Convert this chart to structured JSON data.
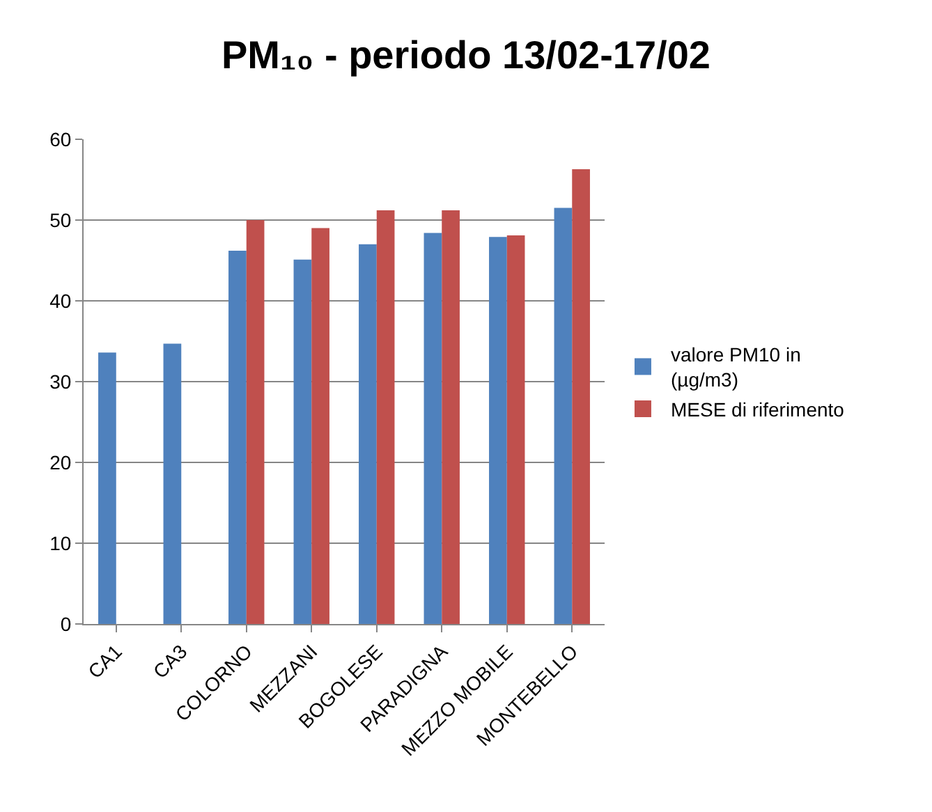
{
  "chart_data": {
    "type": "bar",
    "title": "PM₁₀ - periodo 13/02-17/02",
    "categories": [
      "CA1",
      "CA3",
      "COLORNO",
      "MEZZANI",
      "BOGOLESE",
      "PARADIGNA",
      "MEZZO MOBILE",
      "MONTEBELLO"
    ],
    "series": [
      {
        "name": "valore PM10 in (µg/m3)",
        "color": "#4f81bd",
        "values": [
          33.6,
          34.7,
          46.2,
          45.1,
          47.0,
          48.4,
          47.9,
          51.5
        ]
      },
      {
        "name": "MESE di riferimento",
        "color": "#c0504d",
        "values": [
          null,
          null,
          50.0,
          49.0,
          51.2,
          51.2,
          48.1,
          56.3
        ]
      }
    ],
    "ylim": [
      0,
      60
    ],
    "yticks": [
      0,
      10,
      20,
      30,
      40,
      50,
      60
    ],
    "grid": "y",
    "legend": "right"
  }
}
